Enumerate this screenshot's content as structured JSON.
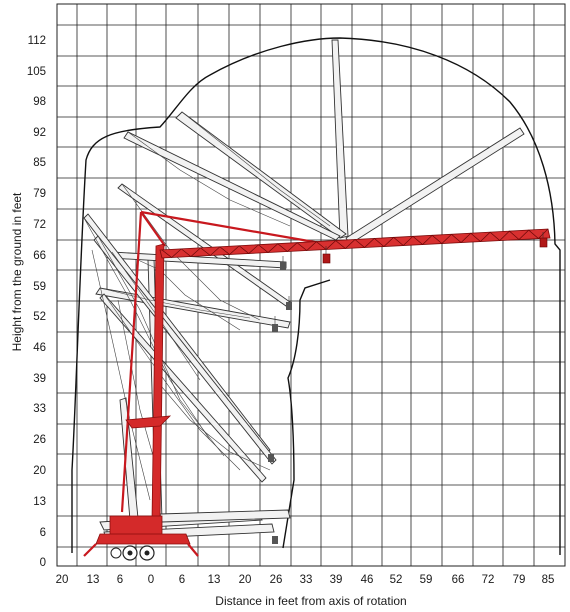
{
  "diagram": {
    "type": "crane working range diagram",
    "x_axis_label": "Distance in feet from axis of rotation",
    "y_axis_label": "Height from the ground in feet",
    "x_ticks": [
      "20",
      "13",
      "6",
      "0",
      "6",
      "13",
      "20",
      "26",
      "33",
      "39",
      "46",
      "52",
      "59",
      "66",
      "72",
      "79",
      "85"
    ],
    "y_ticks": [
      "112",
      "105",
      "98",
      "92",
      "85",
      "79",
      "72",
      "66",
      "59",
      "52",
      "46",
      "39",
      "33",
      "26",
      "20",
      "13",
      "6",
      "0"
    ],
    "colors": {
      "highlight": "#c8181e",
      "grid": "#222222",
      "envelope": "#111111",
      "boom_fill": "#f2f2f2"
    }
  }
}
